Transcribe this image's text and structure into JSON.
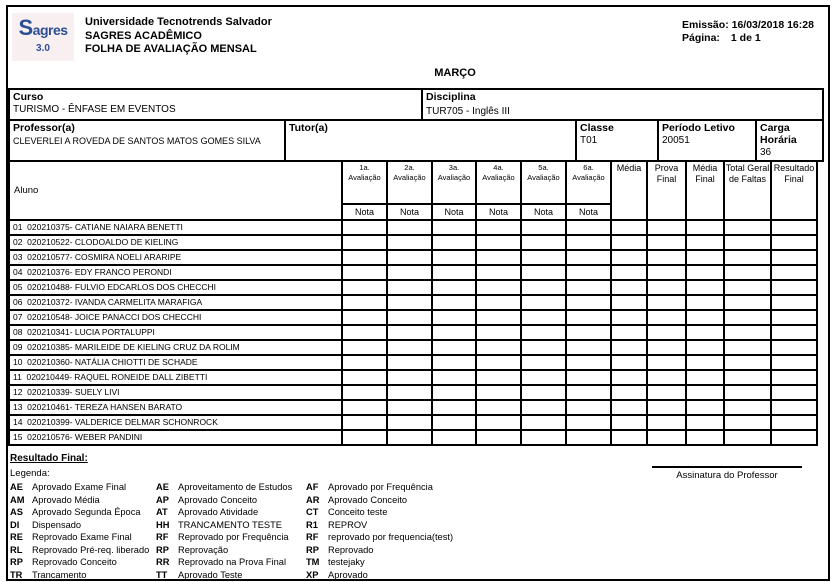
{
  "header": {
    "logo_brand": "Sagres",
    "logo_version": "3.0",
    "university": "Universidade Tecnotrends Salvador",
    "system": "SAGRES ACADÊMICO",
    "report_title": "FOLHA DE AVALIAÇÃO MENSAL",
    "emission_label": "Emissão:",
    "emission_value": "16/03/2018 16:28",
    "page_label": "Página:",
    "page_value": "1 de 1"
  },
  "month_title": "MARÇO",
  "info": {
    "curso_label": "Curso",
    "curso_value": "TURISMO - ÊNFASE EM EVENTOS",
    "disciplina_label": "Disciplina",
    "disciplina_value": "TUR705 - Inglês III",
    "professor_label": "Professor(a)",
    "professor_value": "CLEVERLEI A ROVEDA DE SANTOS MATOS GOMES SILVA",
    "tutor_label": "Tutor(a)",
    "tutor_value": "",
    "classe_label": "Classe",
    "classe_value": "T01",
    "periodo_label": "Período Letivo",
    "periodo_value": "20051",
    "carga_label": "Carga Horária",
    "carga_value": "36"
  },
  "table": {
    "aluno_header": "Aluno",
    "avaliacao_headers": [
      "1a. Avaliação",
      "2a. Avaliação",
      "3a. Avaliação",
      "4a. Avaliação",
      "5a. Avaliação",
      "6a. Avaliação"
    ],
    "nota_label": "Nota",
    "right_headers": [
      "Média",
      "Prova\nFinal",
      "Média\nFinal",
      "Total Geral\nde Faltas",
      "Resultado\nFinal"
    ],
    "students": [
      {
        "num": "01",
        "text": "020210375- CATIANE NAIARA BENETTI"
      },
      {
        "num": "02",
        "text": "020210522- CLODOALDO DE KIELING"
      },
      {
        "num": "03",
        "text": "020210577- COSMIRA NOELI ARARIPE"
      },
      {
        "num": "04",
        "text": "020210376- EDY FRANCO PERONDI"
      },
      {
        "num": "05",
        "text": "020210488- FULVIO EDCARLOS DOS CHECCHI"
      },
      {
        "num": "06",
        "text": "020210372- IVANDA CARMELITA MARAFIGA"
      },
      {
        "num": "07",
        "text": "020210548- JOICE PANACCI DOS CHECCHI"
      },
      {
        "num": "08",
        "text": "020210341- LUCIA PORTALUPPI"
      },
      {
        "num": "09",
        "text": "020210385- MARILEIDE DE KIELING CRUZ DA ROLIM"
      },
      {
        "num": "10",
        "text": "020210360- NATÁLIA CHIOTTI DE SCHADE"
      },
      {
        "num": "11",
        "text": "020210449- RAQUEL RONEIDE DALL ZIBETTI"
      },
      {
        "num": "12",
        "text": "020210339- SUELY LIVI"
      },
      {
        "num": "13",
        "text": "020210461- TEREZA HANSEN BARATO"
      },
      {
        "num": "14",
        "text": "020210399- VALDERICE DELMAR SCHONROCK"
      },
      {
        "num": "15",
        "text": "020210576- WEBER PANDINI"
      }
    ]
  },
  "footer": {
    "resultado_final_label": "Resultado Final:",
    "legenda_label": "Legenda:",
    "legend_columns": [
      [
        {
          "code": "AE",
          "desc": "Aprovado Exame Final"
        },
        {
          "code": "AM",
          "desc": "Aprovado Média"
        },
        {
          "code": "AS",
          "desc": "Aprovado Segunda Época"
        },
        {
          "code": "DI",
          "desc": "Dispensado"
        },
        {
          "code": "RE",
          "desc": "Reprovado Exame Final"
        },
        {
          "code": "RL",
          "desc": "Reprovado Pré-req. liberado"
        },
        {
          "code": "RP",
          "desc": "Reprovado Conceito"
        },
        {
          "code": "TR",
          "desc": "Trancamento"
        }
      ],
      [
        {
          "code": "AE",
          "desc": "Aproveitamento de Estudos"
        },
        {
          "code": "AP",
          "desc": "Aprovado Conceito"
        },
        {
          "code": "AT",
          "desc": "Aprovado Atividade"
        },
        {
          "code": "HH",
          "desc": "TRANCAMENTO TESTE"
        },
        {
          "code": "RF",
          "desc": "Reprovado por Frequência"
        },
        {
          "code": "RP",
          "desc": "Reprovação"
        },
        {
          "code": "RR",
          "desc": "Reprovado na Prova Final"
        },
        {
          "code": "TT",
          "desc": "Aprovado Teste"
        }
      ],
      [
        {
          "code": "AF",
          "desc": "Aprovado por Frequência"
        },
        {
          "code": "AR",
          "desc": "Aprovado Conceito"
        },
        {
          "code": "CT",
          "desc": "Conceito teste"
        },
        {
          "code": "R1",
          "desc": "REPROV"
        },
        {
          "code": "RF",
          "desc": "reprovado por frequencia(test)"
        },
        {
          "code": "RP",
          "desc": "Reprovado"
        },
        {
          "code": "TM",
          "desc": "testejaky"
        },
        {
          "code": "XP",
          "desc": "Aprovado"
        }
      ]
    ],
    "signature_label": "Assinatura do Professor"
  },
  "colors": {
    "logo_blue": "#2d4f93",
    "text": "#000000",
    "border": "#000000"
  }
}
